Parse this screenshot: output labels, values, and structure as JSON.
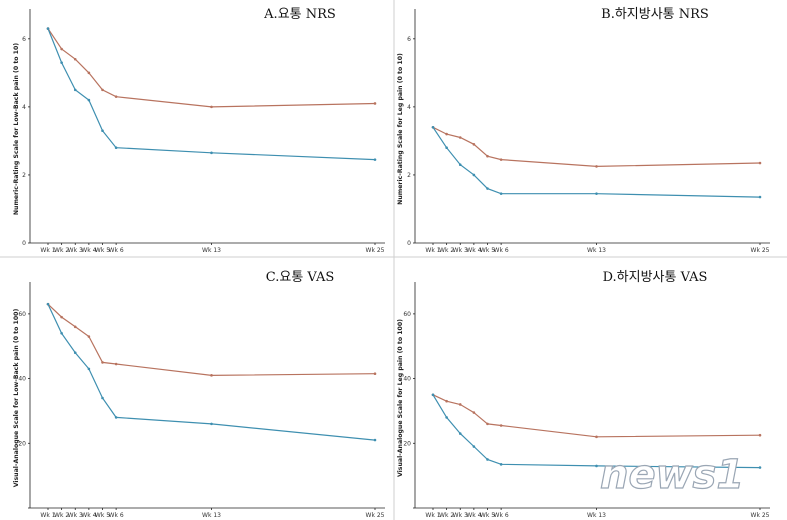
{
  "watermark": {
    "text": "news1"
  },
  "colors": {
    "series_upper": "#b8735f",
    "series_lower": "#3e8fb0"
  },
  "chart_data": [
    {
      "type": "line",
      "title": "A.요통 NRS",
      "ylabel": "Numeric-Rating Scale for Low-Back pain (0 to 10)",
      "xlabel": "",
      "x": [
        1,
        2,
        3,
        4,
        5,
        6,
        13,
        25
      ],
      "x_tick_labels": [
        "Wk 1",
        "Wk 2",
        "Wk 3",
        "Wk 4",
        "Wk 5",
        "Wk 6",
        "Wk 13",
        "Wk 25"
      ],
      "y_ticks": [
        0,
        2,
        4,
        6
      ],
      "ylim": [
        0,
        6.7
      ],
      "grid": false,
      "series": [
        {
          "values": [
            6.3,
            5.7,
            5.4,
            5.0,
            4.5,
            4.3,
            4.0,
            4.1
          ]
        },
        {
          "values": [
            6.3,
            5.3,
            4.5,
            4.2,
            3.3,
            2.8,
            2.65,
            2.45
          ]
        }
      ]
    },
    {
      "type": "line",
      "title": "B.하지방사통 NRS",
      "ylabel": "Numeric-Rating Scale for Leg pain (0 to 10)",
      "xlabel": "",
      "x": [
        1,
        2,
        3,
        4,
        5,
        6,
        13,
        25
      ],
      "x_tick_labels": [
        "Wk 1",
        "Wk 2",
        "Wk 3",
        "Wk 4",
        "Wk 5",
        "Wk 6",
        "Wk 13",
        "Wk 25"
      ],
      "y_ticks": [
        0,
        2,
        4,
        6
      ],
      "ylim": [
        0,
        6.7
      ],
      "grid": false,
      "series": [
        {
          "values": [
            3.4,
            3.2,
            3.1,
            2.9,
            2.55,
            2.45,
            2.25,
            2.35
          ]
        },
        {
          "values": [
            3.4,
            2.8,
            2.3,
            2.0,
            1.6,
            1.45,
            1.45,
            1.35
          ]
        }
      ]
    },
    {
      "type": "line",
      "title": "C.요통 VAS",
      "ylabel": "Visual-Analogue Scale for Low-Back pain (0 to 100)",
      "xlabel": "",
      "x": [
        1,
        2,
        3,
        4,
        5,
        6,
        13,
        25
      ],
      "x_tick_labels": [
        "Wk 1",
        "Wk 2",
        "Wk 3",
        "Wk 4",
        "Wk 5",
        "Wk 6",
        "Wk 13",
        "Wk 25"
      ],
      "y_ticks": [
        20,
        40,
        60
      ],
      "ylim": [
        0,
        68
      ],
      "grid": false,
      "series": [
        {
          "values": [
            63,
            59,
            56,
            53,
            45,
            44.5,
            41,
            41.5
          ]
        },
        {
          "values": [
            63,
            54,
            48,
            43,
            34,
            28,
            26,
            21
          ]
        }
      ]
    },
    {
      "type": "line",
      "title": "D.하지방사통 VAS",
      "ylabel": "Visual-Analogue Scale for Leg pain (0 to 100)",
      "xlabel": "",
      "x": [
        1,
        2,
        3,
        4,
        5,
        6,
        13,
        25
      ],
      "x_tick_labels": [
        "Wk 1",
        "Wk 2",
        "Wk 3",
        "Wk 4",
        "Wk 5",
        "Wk 6",
        "Wk 13",
        "Wk 25"
      ],
      "y_ticks": [
        20,
        40,
        60
      ],
      "ylim": [
        0,
        68
      ],
      "grid": false,
      "series": [
        {
          "values": [
            35,
            33,
            32,
            29.5,
            26,
            25.5,
            22,
            22.5
          ]
        },
        {
          "values": [
            35,
            28,
            23,
            19,
            15,
            13.5,
            13,
            12.5
          ]
        }
      ]
    }
  ]
}
